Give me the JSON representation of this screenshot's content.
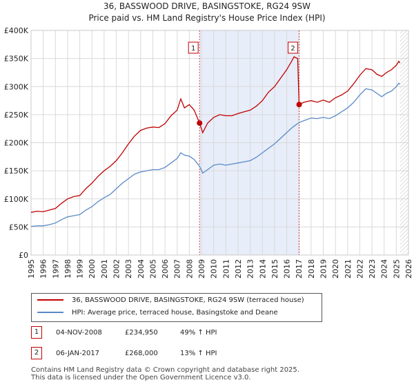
{
  "title": "36, BASSWOOD DRIVE, BASINGSTOKE, RG24 9SW",
  "subtitle": "Price paid vs. HM Land Registry's House Price Index (HPI)",
  "colors": {
    "property": "#c00000",
    "hpi": "#5a8ac6",
    "shade": "#dde6f7",
    "grid": "#d9d9d9"
  },
  "chart_data": {
    "type": "line",
    "xlim": [
      1995,
      2026
    ],
    "ylim": [
      0,
      400000
    ],
    "x_ticks": [
      "1995",
      "1996",
      "1997",
      "1998",
      "1999",
      "2000",
      "2001",
      "2002",
      "2003",
      "2004",
      "2005",
      "2006",
      "2007",
      "2008",
      "2009",
      "2010",
      "2011",
      "2012",
      "2013",
      "2014",
      "2015",
      "2016",
      "2017",
      "2018",
      "2019",
      "2020",
      "2021",
      "2022",
      "2023",
      "2024",
      "2025",
      "2026"
    ],
    "y_ticks": [
      {
        "value": 0,
        "label": "£0"
      },
      {
        "value": 50000,
        "label": "£50K"
      },
      {
        "value": 100000,
        "label": "£100K"
      },
      {
        "value": 150000,
        "label": "£150K"
      },
      {
        "value": 200000,
        "label": "£200K"
      },
      {
        "value": 250000,
        "label": "£250K"
      },
      {
        "value": 300000,
        "label": "£300K"
      },
      {
        "value": 350000,
        "label": "£350K"
      },
      {
        "value": 400000,
        "label": "£400K"
      }
    ],
    "shaded_range": [
      2008.84,
      2017.02
    ],
    "future_hatch_from": 2025.3,
    "series": [
      {
        "name": "36, BASSWOOD DRIVE, BASINGSTOKE, RG24 9SW (terraced house)",
        "color": "#c00000",
        "points": [
          [
            1995.0,
            76000
          ],
          [
            1995.5,
            78000
          ],
          [
            1996.0,
            77000
          ],
          [
            1996.5,
            80000
          ],
          [
            1997.0,
            83000
          ],
          [
            1997.5,
            92000
          ],
          [
            1998.0,
            100000
          ],
          [
            1998.5,
            104000
          ],
          [
            1999.0,
            106000
          ],
          [
            1999.5,
            118000
          ],
          [
            2000.0,
            128000
          ],
          [
            2000.5,
            140000
          ],
          [
            2001.0,
            150000
          ],
          [
            2001.5,
            158000
          ],
          [
            2002.0,
            168000
          ],
          [
            2002.5,
            182000
          ],
          [
            2003.0,
            198000
          ],
          [
            2003.5,
            212000
          ],
          [
            2004.0,
            222000
          ],
          [
            2004.5,
            226000
          ],
          [
            2005.0,
            228000
          ],
          [
            2005.5,
            227000
          ],
          [
            2006.0,
            234000
          ],
          [
            2006.5,
            248000
          ],
          [
            2007.0,
            258000
          ],
          [
            2007.3,
            278000
          ],
          [
            2007.6,
            262000
          ],
          [
            2008.0,
            268000
          ],
          [
            2008.4,
            258000
          ],
          [
            2008.84,
            234950
          ],
          [
            2009.1,
            218000
          ],
          [
            2009.5,
            235000
          ],
          [
            2010.0,
            245000
          ],
          [
            2010.5,
            250000
          ],
          [
            2011.0,
            248000
          ],
          [
            2011.5,
            248000
          ],
          [
            2012.0,
            252000
          ],
          [
            2012.5,
            255000
          ],
          [
            2013.0,
            258000
          ],
          [
            2013.5,
            265000
          ],
          [
            2014.0,
            275000
          ],
          [
            2014.5,
            290000
          ],
          [
            2015.0,
            300000
          ],
          [
            2015.5,
            315000
          ],
          [
            2016.0,
            330000
          ],
          [
            2016.4,
            345000
          ],
          [
            2016.6,
            353000
          ],
          [
            2016.9,
            350000
          ],
          [
            2017.02,
            268000
          ],
          [
            2017.4,
            272000
          ],
          [
            2018.0,
            275000
          ],
          [
            2018.5,
            272000
          ],
          [
            2019.0,
            276000
          ],
          [
            2019.5,
            272000
          ],
          [
            2020.0,
            280000
          ],
          [
            2020.5,
            285000
          ],
          [
            2021.0,
            292000
          ],
          [
            2021.5,
            305000
          ],
          [
            2022.0,
            320000
          ],
          [
            2022.5,
            332000
          ],
          [
            2023.0,
            330000
          ],
          [
            2023.4,
            322000
          ],
          [
            2023.8,
            318000
          ],
          [
            2024.2,
            325000
          ],
          [
            2024.6,
            330000
          ],
          [
            2025.0,
            338000
          ],
          [
            2025.2,
            345000
          ],
          [
            2025.3,
            342000
          ]
        ]
      },
      {
        "name": "HPI: Average price, terraced house, Basingstoke and Deane",
        "color": "#5a8ac6",
        "points": [
          [
            1995.0,
            51000
          ],
          [
            1995.5,
            52000
          ],
          [
            1996.0,
            52000
          ],
          [
            1996.5,
            54000
          ],
          [
            1997.0,
            57000
          ],
          [
            1997.5,
            63000
          ],
          [
            1998.0,
            68000
          ],
          [
            1998.5,
            70000
          ],
          [
            1999.0,
            72000
          ],
          [
            1999.5,
            80000
          ],
          [
            2000.0,
            86000
          ],
          [
            2000.5,
            95000
          ],
          [
            2001.0,
            102000
          ],
          [
            2001.5,
            108000
          ],
          [
            2002.0,
            118000
          ],
          [
            2002.5,
            128000
          ],
          [
            2003.0,
            136000
          ],
          [
            2003.5,
            144000
          ],
          [
            2004.0,
            148000
          ],
          [
            2004.5,
            150000
          ],
          [
            2005.0,
            152000
          ],
          [
            2005.5,
            152000
          ],
          [
            2006.0,
            156000
          ],
          [
            2006.5,
            164000
          ],
          [
            2007.0,
            172000
          ],
          [
            2007.3,
            182000
          ],
          [
            2007.6,
            178000
          ],
          [
            2008.0,
            176000
          ],
          [
            2008.4,
            170000
          ],
          [
            2008.84,
            158000
          ],
          [
            2009.1,
            146000
          ],
          [
            2009.5,
            152000
          ],
          [
            2010.0,
            160000
          ],
          [
            2010.5,
            162000
          ],
          [
            2011.0,
            160000
          ],
          [
            2011.5,
            162000
          ],
          [
            2012.0,
            164000
          ],
          [
            2012.5,
            166000
          ],
          [
            2013.0,
            168000
          ],
          [
            2013.5,
            174000
          ],
          [
            2014.0,
            182000
          ],
          [
            2014.5,
            190000
          ],
          [
            2015.0,
            198000
          ],
          [
            2015.5,
            208000
          ],
          [
            2016.0,
            218000
          ],
          [
            2016.5,
            228000
          ],
          [
            2017.02,
            236000
          ],
          [
            2017.5,
            240000
          ],
          [
            2018.0,
            244000
          ],
          [
            2018.5,
            243000
          ],
          [
            2019.0,
            245000
          ],
          [
            2019.5,
            243000
          ],
          [
            2020.0,
            248000
          ],
          [
            2020.5,
            255000
          ],
          [
            2021.0,
            262000
          ],
          [
            2021.5,
            272000
          ],
          [
            2022.0,
            285000
          ],
          [
            2022.5,
            296000
          ],
          [
            2023.0,
            294000
          ],
          [
            2023.4,
            288000
          ],
          [
            2023.8,
            282000
          ],
          [
            2024.2,
            288000
          ],
          [
            2024.6,
            292000
          ],
          [
            2025.0,
            300000
          ],
          [
            2025.2,
            306000
          ],
          [
            2025.3,
            304000
          ]
        ]
      }
    ],
    "annotations": [
      {
        "label": "1",
        "x": 2008.84,
        "y": 234950
      },
      {
        "label": "2",
        "x": 2017.02,
        "y": 268000
      }
    ]
  },
  "legend": {
    "property_label": "36, BASSWOOD DRIVE, BASINGSTOKE, RG24 9SW (terraced house)",
    "hpi_label": "HPI: Average price, terraced house, Basingstoke and Deane"
  },
  "sales": [
    {
      "marker": "1",
      "date": "04-NOV-2008",
      "price": "£234,950",
      "hpi_change": "49% ↑ HPI"
    },
    {
      "marker": "2",
      "date": "06-JAN-2017",
      "price": "£268,000",
      "hpi_change": "13% ↑ HPI"
    }
  ],
  "footer": {
    "line1": "Contains HM Land Registry data © Crown copyright and database right 2025.",
    "line2": "This data is licensed under the Open Government Licence v3.0."
  }
}
